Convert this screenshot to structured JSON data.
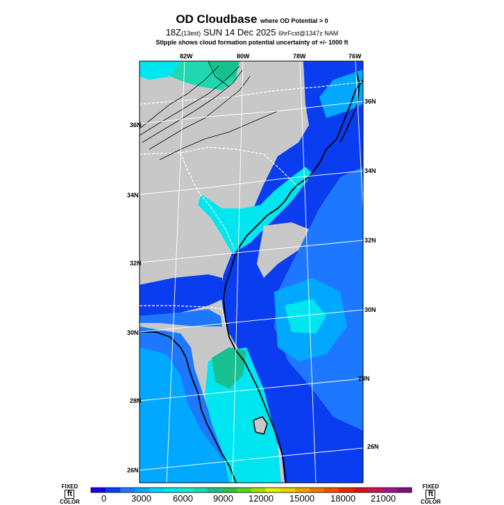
{
  "header": {
    "title": "OD Cloudbase",
    "title_note": "where OD Potential > 0",
    "run_hour": "18Z",
    "run_local": "(13est)",
    "run_date": "SUN 14 Dec 2025",
    "forecast": "6hrFcst@1347z NAM",
    "subtitle": "Stipple shows cloud formation potential uncertainty of +/- 1000 ft"
  },
  "map": {
    "lon_labels": [
      "82W",
      "80W",
      "78W",
      "76W"
    ],
    "lat_labels_left": [
      "36N",
      "34N",
      "32N",
      "30N",
      "28N",
      "26N"
    ],
    "lat_labels_right": [
      "36N",
      "34N",
      "32N",
      "30N",
      "28N",
      "26N"
    ],
    "colors": {
      "land_no_data": "#c8c8c8",
      "deep_blue": "#0a3cf0",
      "mid_blue": "#1e78ff",
      "light_blue": "#00a8ff",
      "cyan": "#00e6f0",
      "aqua": "#20d8b0",
      "green": "#18c090"
    }
  },
  "legend": {
    "left_label": [
      "FIXED",
      "ft",
      "COLOR"
    ],
    "right_label": [
      "FIXED",
      "ft",
      "COLOR"
    ],
    "ticks": [
      "0",
      "3000",
      "6000",
      "9000",
      "12000",
      "15000",
      "18000",
      "21000"
    ],
    "swatches": [
      "#1400e6",
      "#0a3cf0",
      "#1e78ff",
      "#00a8ff",
      "#00d2ff",
      "#00e6f0",
      "#20e6c8",
      "#20d8b0",
      "#18c090",
      "#30c040",
      "#60d020",
      "#a0e000",
      "#e6f000",
      "#f0d000",
      "#f0a000",
      "#f07800",
      "#f05000",
      "#e62800",
      "#d21414",
      "#c81450",
      "#a0148c",
      "#78147c"
    ]
  }
}
